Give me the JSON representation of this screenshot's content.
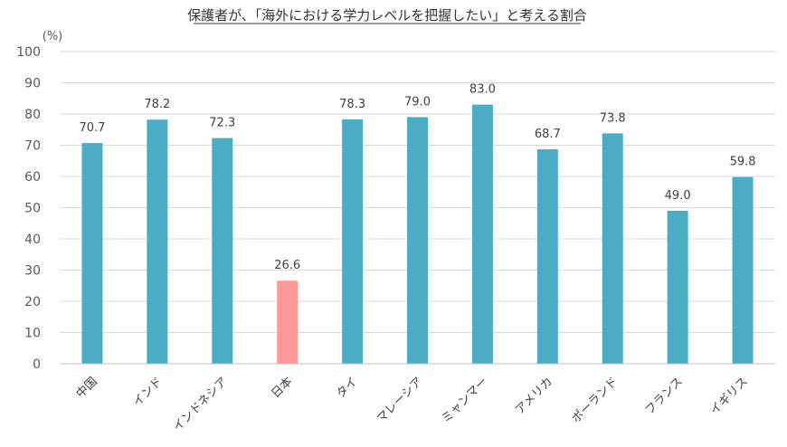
{
  "chart_data": {
    "type": "bar",
    "title": "保護者が、「海外における学力レベルを把握したい」と考える割合",
    "unit_label": "(%)",
    "xlabel": "",
    "ylabel": "",
    "ylim": [
      0,
      100
    ],
    "yticks": [
      0,
      10,
      20,
      30,
      40,
      50,
      60,
      70,
      80,
      90,
      100
    ],
    "grid": true,
    "legend": "none",
    "categories": [
      "中国",
      "インド",
      "インドネシア",
      "日本",
      "タイ",
      "マレーシア",
      "ミャンマー",
      "アメリカ",
      "ポーランド",
      "フランス",
      "イギリス"
    ],
    "values": [
      70.7,
      78.2,
      72.3,
      26.6,
      78.3,
      79.0,
      83.0,
      68.7,
      73.8,
      49.0,
      59.8
    ],
    "value_labels": [
      "70.7",
      "78.2",
      "72.3",
      "26.6",
      "78.3",
      "79.0",
      "83.0",
      "68.7",
      "73.8",
      "49.0",
      "59.8"
    ],
    "highlight_index": 3,
    "colors": {
      "bar": "#4BACC6",
      "highlight": "#FF9999",
      "grid": "#D9D9D9",
      "axis": "#BFBFBF"
    }
  }
}
